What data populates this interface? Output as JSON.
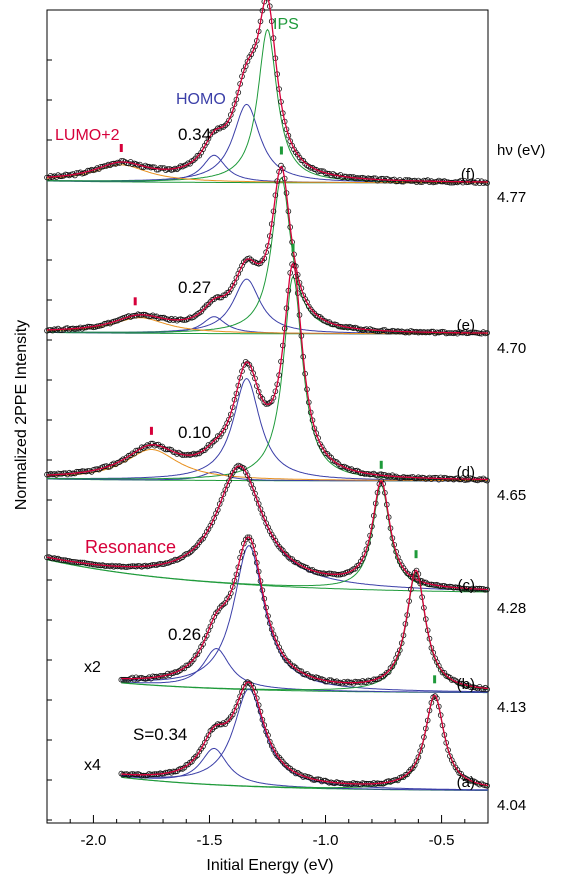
{
  "chart_data": {
    "type": "line",
    "xlabel": "Initial Energy (eV)",
    "ylabel": "Normalized 2PPE Intensity",
    "xlim": [
      -2.2,
      -0.3
    ],
    "xticks": [
      -2.0,
      -1.5,
      -1.0,
      -0.5
    ],
    "xtick_labels": [
      "-2.0",
      "-1.5",
      "-1.0",
      "-0.5"
    ],
    "hv_header": "hν (eV)",
    "grid": false,
    "colors": {
      "data": "#111111",
      "fit_total": "#d6003a",
      "homo": "#3b3fa8",
      "ips": "#1e9a3a",
      "lumo2": "#e8901e",
      "background": "#1e9a3a",
      "resonance": "#d6003a",
      "lumo_label": "#d6003a"
    },
    "annotations": {
      "ips": "IPS",
      "homo": "HOMO",
      "lumo2": "LUMO+2",
      "resonance": "Resonance"
    },
    "spectra": [
      {
        "label": "(f)",
        "hv": "4.77",
        "s_label": "0.34",
        "scale": "",
        "x_start": -2.2,
        "base": 0.0,
        "bg_amp": 0.012,
        "bg_decay": 1.8,
        "homo": [
          {
            "e": -1.34,
            "a": 0.46,
            "w": 0.07
          },
          {
            "e": -1.48,
            "a": 0.16,
            "w": 0.06
          }
        ],
        "ips": {
          "e": -1.25,
          "a": 0.9,
          "w": 0.05
        },
        "lumo": {
          "e": -1.88,
          "a": 0.1,
          "w": 0.14
        },
        "ips_mark": -1.25,
        "lumo_mark": -1.88
      },
      {
        "label": "(e)",
        "hv": "4.70",
        "s_label": "0.27",
        "scale": "",
        "x_start": -2.2,
        "base": 0.0,
        "bg_amp": 0.012,
        "bg_decay": 1.8,
        "homo": [
          {
            "e": -1.34,
            "a": 0.42,
            "w": 0.07
          },
          {
            "e": -1.48,
            "a": 0.13,
            "w": 0.06
          }
        ],
        "ips": {
          "e": -1.19,
          "a": 1.2,
          "w": 0.05
        },
        "lumo": {
          "e": -1.8,
          "a": 0.12,
          "w": 0.14
        },
        "ips_mark": -1.19,
        "lumo_mark": -1.82
      },
      {
        "label": "(d)",
        "hv": "4.65",
        "s_label": "0.10",
        "scale": "",
        "x_start": -2.2,
        "base": 0.0,
        "bg_amp": 0.012,
        "bg_decay": 1.8,
        "homo": [
          {
            "e": -1.34,
            "a": 0.6,
            "w": 0.07
          },
          {
            "e": -1.48,
            "a": 0.05,
            "w": 0.06
          }
        ],
        "ips": {
          "e": -1.14,
          "a": 1.2,
          "w": 0.05
        },
        "lumo": {
          "e": -1.75,
          "a": 0.18,
          "w": 0.14
        },
        "ips_mark": -1.14,
        "lumo_mark": -1.75
      },
      {
        "label": "(c)",
        "hv": "4.28",
        "s_label": "",
        "scale": "",
        "x_start": -2.2,
        "base": 0.0,
        "bg_amp": 0.35,
        "bg_decay": 1.5,
        "homo": [
          {
            "e": -1.37,
            "a": 1.2,
            "w": 0.12
          }
        ],
        "ips": {
          "e": -0.76,
          "a": 1.07,
          "w": 0.045
        },
        "lumo": null,
        "ips_mark": -0.76,
        "lumo_mark": null
      },
      {
        "label": "(b)",
        "hv": "4.13",
        "s_label": "0.26",
        "scale": "x2",
        "x_start": -1.88,
        "base": 0.0,
        "bg_amp": 0.12,
        "bg_decay": 2.0,
        "homo": [
          {
            "e": -1.33,
            "a": 0.9,
            "w": 0.08
          },
          {
            "e": -1.47,
            "a": 0.25,
            "w": 0.07
          }
        ],
        "ips": {
          "e": -0.61,
          "a": 0.75,
          "w": 0.05
        },
        "lumo": null,
        "ips_mark": -0.61,
        "lumo_mark": null
      },
      {
        "label": "(a)",
        "hv": "4.04",
        "s_label": "S=0.34",
        "scale": "x4",
        "x_start": -1.88,
        "base": 0.0,
        "bg_amp": 0.2,
        "bg_decay": 2.0,
        "homo": [
          {
            "e": -1.33,
            "a": 0.75,
            "w": 0.08
          },
          {
            "e": -1.48,
            "a": 0.28,
            "w": 0.07
          }
        ],
        "ips": {
          "e": -0.53,
          "a": 0.72,
          "w": 0.05
        },
        "lumo": null,
        "ips_mark": -0.53,
        "lumo_mark": null
      }
    ]
  }
}
